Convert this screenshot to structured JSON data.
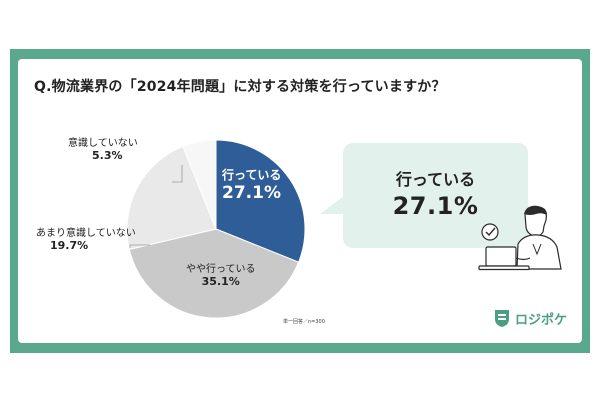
{
  "title": "Q.物流業界の「2024年問題」に対する対策を行っていますか？",
  "note": "単一回答／n=300",
  "callout": {
    "label": "行っている",
    "value": "27.1%"
  },
  "logo": {
    "text": "ロジポケ",
    "icon": "shield-logo-icon"
  },
  "illustration": {
    "icon": "person-at-laptop-icon",
    "badge_icon": "check-circle-icon"
  },
  "colors": {
    "frame": "#5aa98e",
    "bubble": "#e3f1ec",
    "brand": "#4a9e82",
    "slice_1": "#2f5d98",
    "slice_2": "#c9c9c9",
    "slice_3": "#e9e9e9",
    "slice_4": "#f7f7f7"
  },
  "chart_data": {
    "type": "pie",
    "title": "Q.物流業界の「2024年問題」に対する対策を行っていますか？",
    "start": "12 o'clock, clockwise",
    "slices": [
      {
        "label": "行っている",
        "value": 27.1,
        "value_label": "27.1%"
      },
      {
        "label": "やや行っている",
        "value": 35.1,
        "value_label": "35.1%"
      },
      {
        "label": "あまり意識していない",
        "value": 19.7,
        "value_label": "19.7%"
      },
      {
        "label": "意識していない",
        "value": 5.3,
        "value_label": "5.3%"
      }
    ]
  }
}
